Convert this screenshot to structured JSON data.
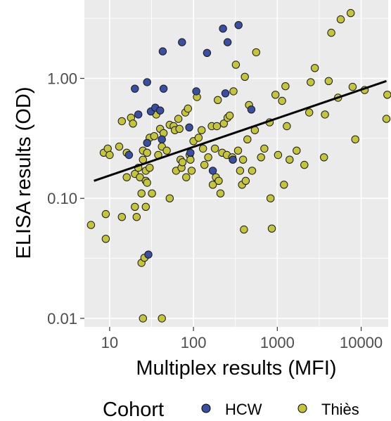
{
  "chart_data": {
    "type": "scatter",
    "title": "",
    "xlabel": "Multiplex results (MFI)",
    "ylabel": "ELISA results (OD)",
    "x_scale": "log10",
    "y_scale": "log10",
    "xlim": [
      5,
      21000
    ],
    "ylim": [
      0.0085,
      4.5
    ],
    "x_ticks": [
      10,
      100,
      1000,
      10000
    ],
    "x_tick_labels": [
      "10",
      "100",
      "1000",
      "10000"
    ],
    "y_ticks": [
      0.01,
      0.1,
      1
    ],
    "y_tick_labels": [
      "0.01",
      "0.10",
      "1.00"
    ],
    "grid": true,
    "background": "#ebebeb",
    "legend": {
      "title": "Cohort",
      "position": "bottom",
      "entries": [
        {
          "label": "HCW",
          "color": "#3a4ea3"
        },
        {
          "label": "Thiès",
          "color": "#c5c53a"
        }
      ]
    },
    "trend_line": {
      "x": [
        6.5,
        20000
      ],
      "y": [
        0.14,
        0.95
      ],
      "color": "#000000"
    },
    "series": [
      {
        "name": "Thiès",
        "color": "#c5c53a",
        "points": [
          [
            6,
            0.06
          ],
          [
            9,
            0.046
          ],
          [
            9,
            0.074
          ],
          [
            8.5,
            0.24
          ],
          [
            9.5,
            0.26
          ],
          [
            10,
            0.23
          ],
          [
            13,
            0.27
          ],
          [
            14,
            0.07
          ],
          [
            14,
            0.44
          ],
          [
            16,
            0.15
          ],
          [
            16,
            0.24
          ],
          [
            18,
            0.47
          ],
          [
            19,
            0.42
          ],
          [
            20,
            0.16
          ],
          [
            20,
            0.085
          ],
          [
            21,
            0.07
          ],
          [
            22,
            0.18
          ],
          [
            23,
            0.15
          ],
          [
            24,
            0.11
          ],
          [
            24,
            0.029
          ],
          [
            25,
            0.25
          ],
          [
            25,
            0.21
          ],
          [
            26,
            0.032
          ],
          [
            25,
            0.01
          ],
          [
            27,
            0.17
          ],
          [
            27,
            0.14
          ],
          [
            27,
            0.085
          ],
          [
            28,
            0.24
          ],
          [
            28,
            0.135
          ],
          [
            30,
            0.32
          ],
          [
            30,
            0.18
          ],
          [
            32,
            0.11
          ],
          [
            34,
            0.33
          ],
          [
            36,
            0.5
          ],
          [
            38,
            0.23
          ],
          [
            40,
            0.38
          ],
          [
            42,
            0.27
          ],
          [
            42,
            0.01
          ],
          [
            44,
            0.35
          ],
          [
            48,
            0.25
          ],
          [
            52,
            0.41
          ],
          [
            52,
            0.1
          ],
          [
            58,
            0.4
          ],
          [
            60,
            0.37
          ],
          [
            62,
            0.17
          ],
          [
            66,
            0.46
          ],
          [
            68,
            0.38
          ],
          [
            70,
            0.21
          ],
          [
            72,
            0.18
          ],
          [
            74,
            0.2
          ],
          [
            80,
            0.52
          ],
          [
            82,
            0.15
          ],
          [
            86,
            0.56
          ],
          [
            90,
            0.23
          ],
          [
            92,
            0.21
          ],
          [
            95,
            0.17
          ],
          [
            100,
            0.3
          ],
          [
            110,
            0.7
          ],
          [
            115,
            0.32
          ],
          [
            125,
            0.37
          ],
          [
            130,
            0.26
          ],
          [
            135,
            0.19
          ],
          [
            150,
            0.22
          ],
          [
            165,
            0.4
          ],
          [
            170,
            0.13
          ],
          [
            180,
            0.26
          ],
          [
            185,
            0.15
          ],
          [
            190,
            0.4
          ],
          [
            195,
            0.66
          ],
          [
            200,
            0.14
          ],
          [
            210,
            0.11
          ],
          [
            220,
            0.24
          ],
          [
            230,
            0.42
          ],
          [
            250,
            0.23
          ],
          [
            255,
            0.47
          ],
          [
            270,
            0.49
          ],
          [
            290,
            0.22
          ],
          [
            300,
            0.78
          ],
          [
            320,
            1.3
          ],
          [
            340,
            0.25
          ],
          [
            360,
            0.17
          ],
          [
            380,
            0.13
          ],
          [
            390,
            0.21
          ],
          [
            400,
            0.055
          ],
          [
            410,
            1.03
          ],
          [
            420,
            0.14
          ],
          [
            440,
            0.31
          ],
          [
            460,
            0.6
          ],
          [
            500,
            0.17
          ],
          [
            540,
            0.37
          ],
          [
            560,
            1.65
          ],
          [
            640,
            0.22
          ],
          [
            700,
            0.26
          ],
          [
            810,
            0.43
          ],
          [
            830,
            0.1
          ],
          [
            860,
            0.056
          ],
          [
            950,
            0.73
          ],
          [
            1020,
            0.23
          ],
          [
            1140,
            0.65
          ],
          [
            1200,
            0.13
          ],
          [
            1250,
            0.86
          ],
          [
            1300,
            0.4
          ],
          [
            1400,
            0.21
          ],
          [
            1700,
            0.25
          ],
          [
            2100,
            0.19
          ],
          [
            2400,
            0.52
          ],
          [
            2500,
            0.93
          ],
          [
            2800,
            1.22
          ],
          [
            3600,
            0.22
          ],
          [
            3700,
            0.5
          ],
          [
            4100,
            0.95
          ],
          [
            4400,
            2.4
          ],
          [
            5300,
            0.69
          ],
          [
            5700,
            3.1
          ],
          [
            7500,
            3.5
          ],
          [
            7900,
            0.85
          ],
          [
            8500,
            0.31
          ],
          [
            11000,
            0.8
          ],
          [
            20000,
            0.46
          ],
          [
            20500,
            0.73
          ]
        ]
      },
      {
        "name": "HCW",
        "color": "#3a4ea3",
        "points": [
          [
            17,
            0.23
          ],
          [
            20,
            0.82
          ],
          [
            22,
            0.5
          ],
          [
            28,
            0.93
          ],
          [
            28,
            0.29
          ],
          [
            29,
            0.034
          ],
          [
            31,
            0.53
          ],
          [
            35,
            0.57
          ],
          [
            40,
            0.54
          ],
          [
            42,
            0.31
          ],
          [
            43,
            1.68
          ],
          [
            44,
            0.82
          ],
          [
            73,
            2.0
          ],
          [
            89,
            0.39
          ],
          [
            92,
            0.24
          ],
          [
            108,
            0.78
          ],
          [
            145,
            1.63
          ],
          [
            170,
            0.17
          ],
          [
            225,
            2.6
          ],
          [
            240,
            0.75
          ],
          [
            255,
            2.0
          ],
          [
            295,
            0.21
          ],
          [
            345,
            2.78
          ],
          [
            490,
            0.55
          ]
        ]
      }
    ]
  }
}
